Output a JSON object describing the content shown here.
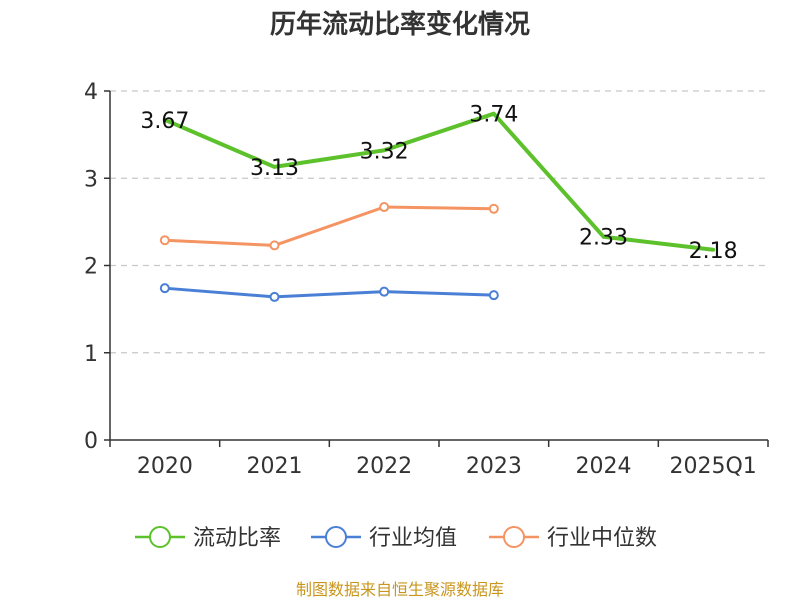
{
  "chart_data": {
    "type": "line",
    "title": "历年流动比率变化情况",
    "categories": [
      "2020",
      "2021",
      "2022",
      "2023",
      "2024",
      "2025Q1"
    ],
    "ylim": [
      0,
      4
    ],
    "yticks": [
      0,
      1,
      2,
      3,
      4
    ],
    "grid": true,
    "legend_position": "bottom",
    "series": [
      {
        "name": "流动比率",
        "color": "#5cc12a",
        "values": [
          3.67,
          3.13,
          3.32,
          3.74,
          2.33,
          2.18
        ],
        "labels": [
          "3.67",
          "3.13",
          "3.32",
          "3.74",
          "2.33",
          "2.18"
        ],
        "show_labels": true,
        "show_markers": false
      },
      {
        "name": "行业均值",
        "color": "#4a7fd6",
        "values": [
          1.74,
          1.64,
          1.7,
          1.66,
          null,
          null
        ],
        "show_labels": false,
        "show_markers": true
      },
      {
        "name": "行业中位数",
        "color": "#f59463",
        "values": [
          2.29,
          2.23,
          2.67,
          2.65,
          null,
          null
        ],
        "show_labels": false,
        "show_markers": true
      }
    ],
    "source": "制图数据来自恒生聚源数据库"
  }
}
